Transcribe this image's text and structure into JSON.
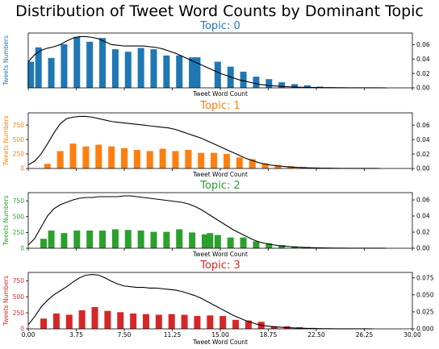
{
  "chart_data": {
    "type": "bar",
    "title": "Distribution of Tweet Word Counts by Dominant Topic",
    "xlim": [
      0,
      30
    ],
    "x_ticks": [
      "0.00",
      "3.75",
      "7.50",
      "11.25",
      "15.00",
      "18.75",
      "22.50",
      "26.25",
      "30.00"
    ],
    "panels": [
      {
        "title": "Topic: 0",
        "color": "#1f77b4",
        "xlabel": "Tweet Word Count",
        "ylabel": "Tweets Numbers",
        "ylim": [
          0,
          880
        ],
        "y_ticks": [],
        "y2lim": [
          0,
          0.076
        ],
        "y2_ticks": [
          "0.00",
          "0.02",
          "0.04",
          "0.06"
        ],
        "bars": {
          "x": [
            0.2,
            0.8,
            1.8,
            2.8,
            3.8,
            4.8,
            5.8,
            6.8,
            7.8,
            8.8,
            9.8,
            10.8,
            11.8,
            12.8,
            13.2,
            14.8,
            15.8,
            16.8,
            17.8,
            18.8,
            19.8,
            20.8,
            21.8,
            22.8,
            23.8,
            24.8,
            25.8,
            26.8,
            27.8
          ],
          "values": [
            420,
            650,
            480,
            700,
            820,
            740,
            800,
            620,
            580,
            640,
            620,
            520,
            520,
            490,
            490,
            420,
            340,
            260,
            180,
            140,
            90,
            60,
            40,
            20,
            10,
            6,
            4,
            2,
            1
          ]
        },
        "density": {
          "x": [
            0,
            0.5,
            1,
            1.5,
            2,
            2.5,
            3,
            3.5,
            4,
            4.5,
            5,
            5.5,
            6,
            6.5,
            7,
            7.5,
            8,
            8.5,
            9,
            9.5,
            10,
            10.5,
            11,
            11.5,
            12,
            12.5,
            13,
            13.5,
            14,
            14.5,
            15,
            15.5,
            16,
            16.5,
            17,
            17.5,
            18,
            18.5,
            19,
            19.5,
            20,
            20.5,
            21,
            21.5,
            22,
            22.5,
            23,
            23.5,
            24,
            24.5,
            25,
            25.5,
            26,
            26.5,
            27,
            27.5,
            28
          ],
          "values": [
            0.036,
            0.046,
            0.052,
            0.055,
            0.057,
            0.06,
            0.065,
            0.069,
            0.071,
            0.071,
            0.07,
            0.068,
            0.064,
            0.06,
            0.059,
            0.058,
            0.058,
            0.058,
            0.058,
            0.057,
            0.056,
            0.054,
            0.051,
            0.048,
            0.044,
            0.04,
            0.036,
            0.032,
            0.028,
            0.024,
            0.02,
            0.017,
            0.014,
            0.011,
            0.009,
            0.007,
            0.005,
            0.004,
            0.003,
            0.0024,
            0.0018,
            0.0014,
            0.001,
            0.0008,
            0.0006,
            0.0005,
            0.0004,
            0.0003,
            0.0002,
            0.0002,
            0.0001,
            0.0001,
            0.0001,
            0.0001,
            0.0001,
            0.0001,
            0.0
          ]
        }
      },
      {
        "title": "Topic: 1",
        "color": "#ff7f0e",
        "xlabel": "Tweet Word Count",
        "ylabel": "Tweets Numbers",
        "ylim": [
          0,
          960
        ],
        "y_ticks": [
          "0",
          "250",
          "500",
          "750"
        ],
        "y2lim": [
          0,
          0.077
        ],
        "y2_ticks": [
          "0.00",
          "0.02",
          "0.04",
          "0.06"
        ],
        "bars": {
          "x": [
            1.5,
            2.5,
            3.5,
            4.5,
            5.5,
            6.5,
            7.5,
            8.5,
            9.5,
            10.5,
            11.5,
            12.5,
            13.5,
            14.5,
            15.5,
            16.5,
            17.5,
            18.5,
            19.5,
            20.5,
            21.5,
            22.5,
            23.5,
            24.5
          ],
          "values": [
            80,
            300,
            430,
            380,
            410,
            380,
            350,
            320,
            300,
            340,
            300,
            320,
            270,
            270,
            250,
            190,
            160,
            90,
            60,
            40,
            25,
            15,
            8,
            4
          ]
        },
        "density": {
          "x": [
            0,
            0.5,
            1,
            1.5,
            2,
            2.5,
            3,
            3.5,
            4,
            4.5,
            5,
            5.5,
            6,
            6.5,
            7,
            7.5,
            8,
            8.5,
            9,
            9.5,
            10,
            10.5,
            11,
            11.5,
            12,
            12.5,
            13,
            13.5,
            14,
            14.5,
            15,
            15.5,
            16,
            16.5,
            17,
            17.5,
            18,
            18.5,
            19,
            19.5,
            20,
            20.5,
            21,
            21.5,
            22,
            22.5,
            23,
            23.5,
            24,
            24.5,
            25,
            25.5,
            26,
            26.5,
            27,
            27.5
          ],
          "values": [
            0.005,
            0.01,
            0.02,
            0.034,
            0.049,
            0.062,
            0.069,
            0.071,
            0.072,
            0.072,
            0.071,
            0.069,
            0.067,
            0.065,
            0.064,
            0.063,
            0.062,
            0.061,
            0.06,
            0.059,
            0.058,
            0.057,
            0.056,
            0.054,
            0.051,
            0.048,
            0.045,
            0.042,
            0.038,
            0.034,
            0.03,
            0.026,
            0.022,
            0.018,
            0.014,
            0.011,
            0.008,
            0.006,
            0.0045,
            0.0035,
            0.0027,
            0.002,
            0.0015,
            0.0011,
            0.0008,
            0.0006,
            0.0004,
            0.0003,
            0.0002,
            0.00015,
            0.0001,
            0.0001,
            0.0001,
            0.0001,
            0.0001,
            0.0
          ]
        }
      },
      {
        "title": "Topic: 2",
        "color": "#2ca02c",
        "xlabel": "Tweet Word Count",
        "ylabel": "Tweets Numbers",
        "ylim": [
          0,
          880
        ],
        "y_ticks": [
          "0",
          "250",
          "500",
          "750"
        ],
        "y2lim": [
          0,
          0.069
        ],
        "y2_ticks": [
          "0.00",
          "0.02",
          "0.04",
          "0.06"
        ],
        "bars": {
          "x": [
            1.2,
            1.8,
            2.8,
            3.8,
            4.8,
            5.8,
            6.8,
            7.8,
            8.8,
            9.8,
            10.8,
            11.8,
            12.8,
            13.8,
            14.2,
            14.8,
            15.8,
            16.8,
            17.8,
            18.8,
            19.8,
            20.8,
            21.8,
            22.8,
            23.8,
            24.8,
            25.8
          ],
          "values": [
            150,
            280,
            240,
            280,
            280,
            280,
            300,
            290,
            280,
            260,
            260,
            300,
            250,
            220,
            240,
            210,
            170,
            170,
            110,
            80,
            50,
            30,
            20,
            10,
            6,
            3,
            2
          ]
        },
        "density": {
          "x": [
            0,
            0.5,
            1,
            1.5,
            2,
            2.5,
            3,
            3.5,
            4,
            4.5,
            5,
            5.5,
            6,
            6.5,
            7,
            7.5,
            8,
            8.5,
            9,
            9.5,
            10,
            10.5,
            11,
            11.5,
            12,
            12.5,
            13,
            13.5,
            14,
            14.5,
            15,
            15.5,
            16,
            16.5,
            17,
            17.5,
            18,
            18.5,
            19,
            19.5,
            20,
            20.5,
            21,
            21.5,
            22,
            22.5,
            23,
            23.5,
            24,
            24.5,
            25,
            25.5,
            26,
            26.5,
            27,
            27.5,
            28
          ],
          "values": [
            0.004,
            0.012,
            0.026,
            0.04,
            0.049,
            0.054,
            0.057,
            0.06,
            0.062,
            0.063,
            0.063,
            0.064,
            0.064,
            0.064,
            0.064,
            0.065,
            0.065,
            0.064,
            0.063,
            0.062,
            0.061,
            0.06,
            0.059,
            0.058,
            0.057,
            0.055,
            0.052,
            0.048,
            0.043,
            0.038,
            0.033,
            0.028,
            0.023,
            0.019,
            0.015,
            0.011,
            0.008,
            0.006,
            0.0045,
            0.0035,
            0.0027,
            0.002,
            0.0015,
            0.0011,
            0.0008,
            0.0006,
            0.0004,
            0.0003,
            0.0002,
            0.00015,
            0.0001,
            0.0001,
            0.0001,
            0.0001,
            0.0001,
            0.0001,
            0.0
          ]
        }
      },
      {
        "title": "Topic: 3",
        "color": "#d62728",
        "xlabel": "Tweet Word Count",
        "ylabel": "Tweets Numbers",
        "ylim": [
          0,
          880
        ],
        "y_ticks": [
          "0",
          "250",
          "500",
          "750"
        ],
        "y2lim": [
          0,
          0.083
        ],
        "y2_ticks": [
          "0.000",
          "0.025",
          "0.050",
          "0.075"
        ],
        "bars": {
          "x": [
            1.2,
            2.2,
            3.2,
            4.2,
            5.2,
            6.2,
            7.2,
            8.2,
            9.2,
            10.2,
            11.2,
            12.2,
            13.2,
            14.2,
            15.2,
            16.2,
            17.2,
            18.2,
            19.2,
            20.2,
            21.2,
            22.2,
            23.2
          ],
          "values": [
            160,
            240,
            220,
            290,
            340,
            280,
            260,
            240,
            230,
            220,
            230,
            220,
            200,
            210,
            200,
            140,
            130,
            110,
            40,
            40,
            25,
            15,
            6
          ]
        },
        "density": {
          "x": [
            0,
            0.5,
            1,
            1.5,
            2,
            2.5,
            3,
            3.5,
            4,
            4.5,
            5,
            5.5,
            6,
            6.5,
            7,
            7.5,
            8,
            8.5,
            9,
            9.5,
            10,
            10.5,
            11,
            11.5,
            12,
            12.5,
            13,
            13.5,
            14,
            14.5,
            15,
            15.5,
            16,
            16.5,
            17,
            17.5,
            18,
            18.5,
            19,
            19.5,
            20,
            20.5,
            21,
            21.5,
            22,
            22.5,
            23,
            23.5,
            24,
            24.5,
            25,
            25.5,
            26,
            26.5,
            27
          ],
          "values": [
            0.006,
            0.018,
            0.032,
            0.042,
            0.05,
            0.056,
            0.062,
            0.069,
            0.075,
            0.079,
            0.08,
            0.079,
            0.075,
            0.07,
            0.066,
            0.063,
            0.062,
            0.061,
            0.061,
            0.06,
            0.06,
            0.059,
            0.058,
            0.057,
            0.055,
            0.052,
            0.049,
            0.045,
            0.04,
            0.035,
            0.03,
            0.025,
            0.02,
            0.016,
            0.012,
            0.009,
            0.006,
            0.0045,
            0.0035,
            0.0027,
            0.002,
            0.0015,
            0.0011,
            0.0008,
            0.0006,
            0.0004,
            0.0003,
            0.0002,
            0.00015,
            0.0001,
            0.0001,
            0.0001,
            0.0001,
            0.0001,
            0.0
          ]
        }
      }
    ]
  }
}
